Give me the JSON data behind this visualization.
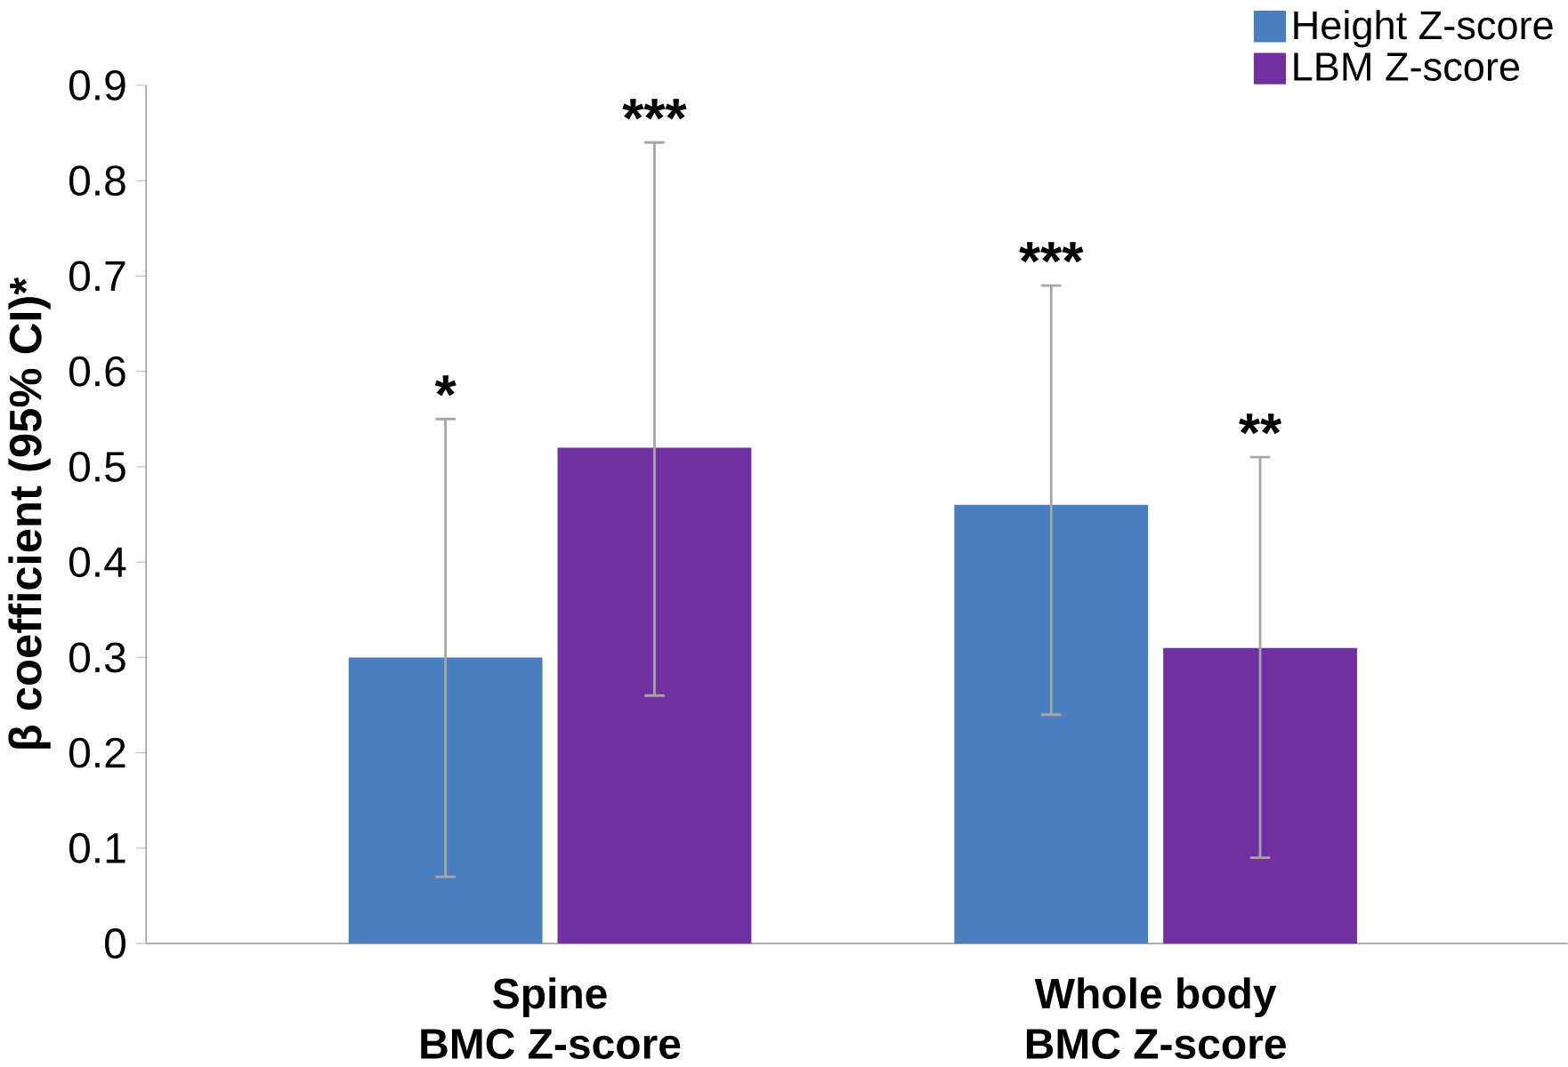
{
  "chart_data": {
    "type": "bar",
    "ylabel": "β coefficient (95% CI)*",
    "categories": [
      "Spine\nBMC Z-score",
      "Whole body\nBMC Z-score"
    ],
    "series": [
      {
        "name": "Height Z-score",
        "color": "#4a7ebf",
        "values": [
          0.3,
          0.46
        ],
        "errors": [
          [
            0.07,
            0.55
          ],
          [
            0.24,
            0.69
          ]
        ]
      },
      {
        "name": "LBM Z-score",
        "color": "#7030a0",
        "values": [
          0.52,
          0.31
        ],
        "errors": [
          [
            0.26,
            0.84
          ],
          [
            0.09,
            0.51
          ]
        ]
      }
    ],
    "ylim": [
      0,
      0.9
    ],
    "yticks": [
      0,
      0.1,
      0.2,
      0.3,
      0.4,
      0.5,
      0.6,
      0.7,
      0.8,
      0.9
    ],
    "annotations": [
      "*",
      "***",
      "***",
      "**"
    ],
    "legend": "top right",
    "grid": false
  }
}
